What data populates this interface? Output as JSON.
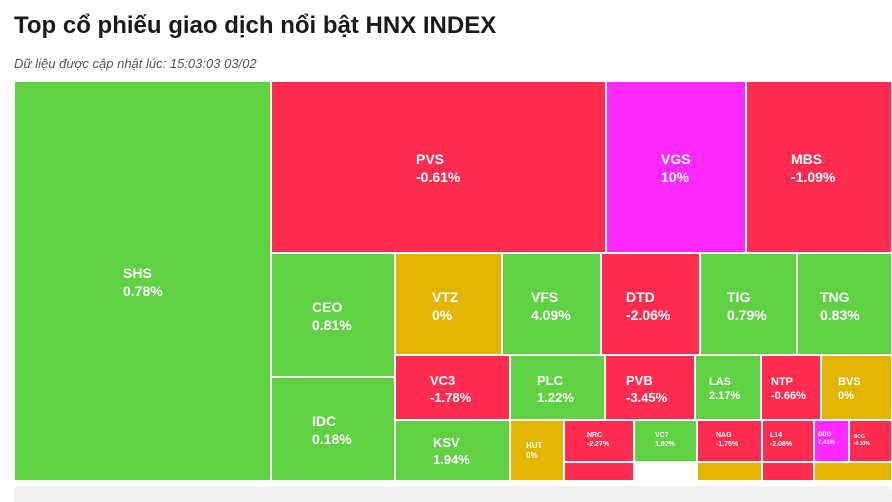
{
  "header": {
    "title": "Top cổ phiếu giao dịch nổi bật HNX INDEX",
    "subtitle": "Dữ liệu được cập nhật lúc: 15:03:03 03/02"
  },
  "colors": {
    "up": "#5fd143",
    "down": "#ff2b50",
    "ceiling": "#ff29ff",
    "reference": "#e1b500"
  },
  "chart_data": {
    "type": "treemap",
    "items": [
      {
        "ticker": "SHS",
        "change": "0.78%",
        "status": "up"
      },
      {
        "ticker": "PVS",
        "change": "-0.61%",
        "status": "down"
      },
      {
        "ticker": "VGS",
        "change": "10%",
        "status": "ceiling"
      },
      {
        "ticker": "MBS",
        "change": "-1.09%",
        "status": "down"
      },
      {
        "ticker": "CEO",
        "change": "0.81%",
        "status": "up"
      },
      {
        "ticker": "IDC",
        "change": "0.18%",
        "status": "up"
      },
      {
        "ticker": "VTZ",
        "change": "0%",
        "status": "reference"
      },
      {
        "ticker": "VFS",
        "change": "4.09%",
        "status": "up"
      },
      {
        "ticker": "DTD",
        "change": "-2.06%",
        "status": "down"
      },
      {
        "ticker": "TIG",
        "change": "0.79%",
        "status": "up"
      },
      {
        "ticker": "TNG",
        "change": "0.83%",
        "status": "up"
      },
      {
        "ticker": "VC3",
        "change": "-1.78%",
        "status": "down"
      },
      {
        "ticker": "PLC",
        "change": "1.22%",
        "status": "up"
      },
      {
        "ticker": "PVB",
        "change": "-3.45%",
        "status": "down"
      },
      {
        "ticker": "LAS",
        "change": "2.17%",
        "status": "up"
      },
      {
        "ticker": "NTP",
        "change": "-0.66%",
        "status": "down"
      },
      {
        "ticker": "BVS",
        "change": "0%",
        "status": "reference"
      },
      {
        "ticker": "KSV",
        "change": "1.94%",
        "status": "up"
      },
      {
        "ticker": "HUT",
        "change": "0%",
        "status": "reference"
      },
      {
        "ticker": "NRC",
        "change": "-2.27%",
        "status": "down"
      },
      {
        "ticker": "VC7",
        "change": "1.02%",
        "status": "up"
      },
      {
        "ticker": "NAG",
        "change": "-1.75%",
        "status": "down"
      },
      {
        "ticker": "L14",
        "change": "-2.08%",
        "status": "down"
      },
      {
        "ticker": "DDG",
        "change": "7.41%",
        "status": "ceiling"
      },
      {
        "ticker": "SCG",
        "change": "-0.33%",
        "status": "down"
      },
      {
        "ticker": "",
        "change": "",
        "status": "down"
      },
      {
        "ticker": "",
        "change": "",
        "status": "reference"
      },
      {
        "ticker": "",
        "change": "",
        "status": "down"
      },
      {
        "ticker": "",
        "change": "",
        "status": "reference"
      }
    ]
  }
}
